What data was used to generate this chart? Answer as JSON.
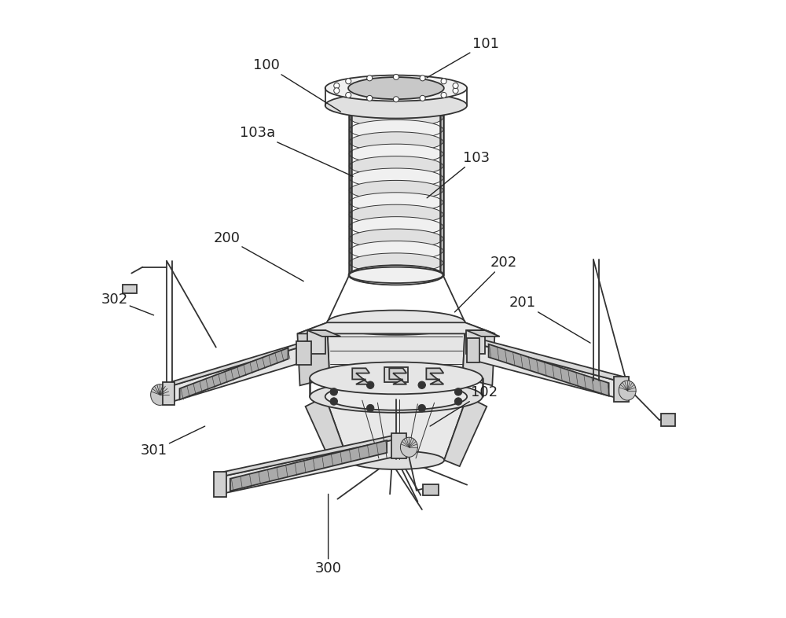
{
  "bg_color": "#ffffff",
  "line_color": "#333333",
  "lw_main": 1.3,
  "lw_thin": 0.7,
  "lw_thick": 1.8,
  "fig_width": 10.0,
  "fig_height": 7.86,
  "label_fontsize": 13,
  "label_color": "#222222",
  "labels_info": {
    "100": [
      0.295,
      0.895,
      0.415,
      0.82
    ],
    "101": [
      0.65,
      0.93,
      0.555,
      0.875
    ],
    "103a": [
      0.28,
      0.785,
      0.435,
      0.715
    ],
    "103": [
      0.635,
      0.745,
      0.555,
      0.68
    ],
    "200": [
      0.23,
      0.615,
      0.355,
      0.545
    ],
    "202": [
      0.68,
      0.575,
      0.6,
      0.495
    ],
    "201": [
      0.71,
      0.51,
      0.82,
      0.445
    ],
    "302": [
      0.048,
      0.515,
      0.112,
      0.49
    ],
    "301": [
      0.112,
      0.27,
      0.195,
      0.31
    ],
    "300": [
      0.395,
      0.08,
      0.395,
      0.2
    ],
    "102": [
      0.648,
      0.365,
      0.56,
      0.31
    ]
  }
}
